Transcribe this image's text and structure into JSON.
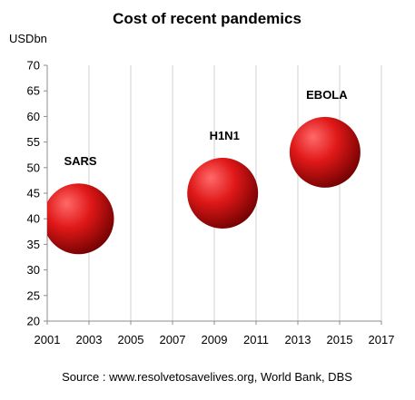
{
  "chart_data": {
    "type": "bubble",
    "title": "Cost of recent pandemics",
    "unit_label": "USDbn",
    "xlabel": "",
    "ylabel": "",
    "x_ticks": [
      "2001",
      "2003",
      "2005",
      "2007",
      "2009",
      "2011",
      "2013",
      "2015",
      "2017"
    ],
    "y_ticks": [
      "20",
      "25",
      "30",
      "35",
      "40",
      "45",
      "50",
      "55",
      "60",
      "65",
      "70"
    ],
    "xlim": [
      2001,
      2017
    ],
    "ylim": [
      20,
      70
    ],
    "grid": "vertical",
    "points": [
      {
        "label": "SARS",
        "x": 2002.5,
        "y": 40
      },
      {
        "label": "H1N1",
        "x": 2009.4,
        "y": 45
      },
      {
        "label": "EBOLA",
        "x": 2014.3,
        "y": 53
      }
    ],
    "source": "Source : www.resolvetosavelives.org, World Bank, DBS",
    "colors": {
      "bubble_highlight": "#ff6a6a",
      "bubble_main": "#e01818",
      "bubble_shadow": "#6a0000",
      "grid": "#d0d0d0",
      "axis": "#8c8c8c"
    }
  }
}
